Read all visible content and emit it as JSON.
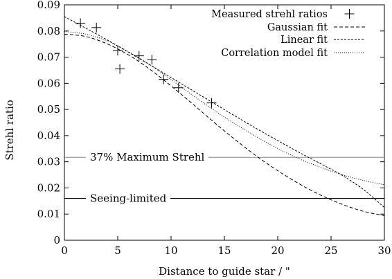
{
  "chart_data": {
    "type": "scatter",
    "xlabel": "Distance to guide star / \"",
    "ylabel": "Strehl ratio",
    "xlim": [
      0,
      30
    ],
    "ylim": [
      0,
      0.09
    ],
    "xticks": [
      0,
      5,
      10,
      15,
      20,
      25,
      30
    ],
    "yticks": [
      0,
      0.01,
      0.02,
      0.03,
      0.04,
      0.05,
      0.06,
      0.07,
      0.08,
      0.09
    ],
    "xtick_labels": [
      "0",
      "5",
      "10",
      "15",
      "20",
      "25",
      "30"
    ],
    "ytick_labels": [
      "0",
      "0.01",
      "0.02",
      "0.03",
      "0.04",
      "0.05",
      "0.06",
      "0.07",
      "0.08",
      "0.09"
    ],
    "grid": false,
    "legend_position": "top-right",
    "series": [
      {
        "name": "Measured strehl ratios",
        "kind": "points",
        "marker": "plus",
        "x": [
          1.5,
          3.0,
          5.0,
          5.2,
          7.0,
          8.2,
          9.3,
          10.7,
          13.8
        ],
        "y": [
          0.083,
          0.0813,
          0.0725,
          0.0655,
          0.0705,
          0.069,
          0.0615,
          0.0583,
          0.0525
        ]
      },
      {
        "name": "Gaussian fit",
        "kind": "line",
        "dash": "dashed",
        "x": [
          0,
          2,
          4,
          6,
          8,
          10,
          12,
          14,
          16,
          18,
          20,
          22,
          24,
          26,
          28,
          30
        ],
        "y": [
          0.0788,
          0.0779,
          0.0751,
          0.0709,
          0.0654,
          0.059,
          0.0522,
          0.0452,
          0.0385,
          0.0322,
          0.0266,
          0.0216,
          0.0173,
          0.0138,
          0.0111,
          0.0094
        ]
      },
      {
        "name": "Linear fit",
        "kind": "line",
        "dash": "short-dashed",
        "x": [
          0,
          2,
          4,
          6,
          8,
          10,
          12,
          14,
          16,
          18,
          20,
          22,
          24,
          26,
          28,
          30
        ],
        "y": [
          0.0855,
          0.0811,
          0.0766,
          0.0719,
          0.0671,
          0.0622,
          0.0573,
          0.0524,
          0.0475,
          0.0427,
          0.0381,
          0.0336,
          0.0293,
          0.0249,
          0.0195,
          0.0125
        ]
      },
      {
        "name": "Correlation model fit",
        "kind": "line",
        "dash": "dotted",
        "x": [
          0,
          2,
          4,
          6,
          8,
          10,
          12,
          14,
          16,
          18,
          20,
          22,
          24,
          26,
          28,
          30
        ],
        "y": [
          0.0798,
          0.0788,
          0.0762,
          0.0721,
          0.0671,
          0.0614,
          0.0555,
          0.0498,
          0.0445,
          0.0396,
          0.0351,
          0.0312,
          0.0279,
          0.0251,
          0.0229,
          0.0212
        ]
      }
    ],
    "reference_lines": [
      {
        "label": "37% Maximum Strehl",
        "y": 0.0317,
        "color": "#888888"
      },
      {
        "label": "Seeing-limited",
        "y": 0.016,
        "color": "#000000"
      }
    ]
  }
}
